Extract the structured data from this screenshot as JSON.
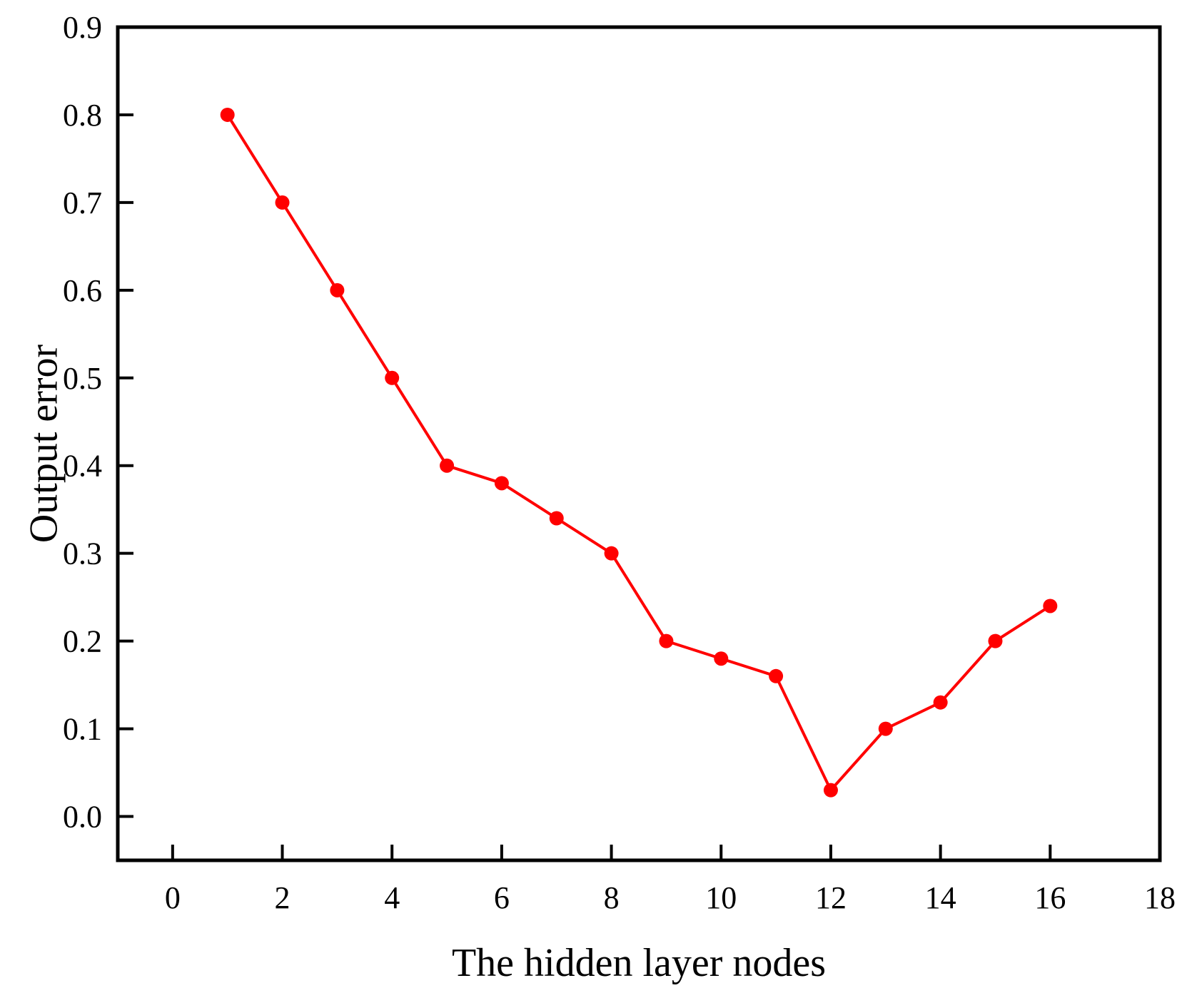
{
  "chart_data": {
    "type": "line",
    "title": "",
    "xlabel": "The hidden layer nodes",
    "ylabel": "Output error",
    "xlim": [
      -1,
      18
    ],
    "ylim": [
      -0.05,
      0.9
    ],
    "x_ticks": [
      0,
      2,
      4,
      6,
      8,
      10,
      12,
      14,
      16,
      18
    ],
    "y_ticks": [
      0.0,
      0.1,
      0.2,
      0.3,
      0.4,
      0.5,
      0.6,
      0.7,
      0.8,
      0.9
    ],
    "x_tick_labels": [
      "0",
      "2",
      "4",
      "6",
      "8",
      "10",
      "12",
      "14",
      "16",
      "18"
    ],
    "y_tick_labels": [
      "0.0",
      "0.1",
      "0.2",
      "0.3",
      "0.4",
      "0.5",
      "0.6",
      "0.7",
      "0.8",
      "0.9"
    ],
    "grid": false,
    "legend": "none",
    "series": [
      {
        "color": "#ff0000",
        "marker": "circle",
        "x": [
          1,
          2,
          3,
          4,
          5,
          6,
          7,
          8,
          9,
          10,
          11,
          12,
          13,
          14,
          15,
          16
        ],
        "y": [
          0.8,
          0.7,
          0.6,
          0.5,
          0.4,
          0.38,
          0.34,
          0.3,
          0.2,
          0.18,
          0.16,
          0.03,
          0.1,
          0.13,
          0.2,
          0.24
        ]
      }
    ]
  }
}
